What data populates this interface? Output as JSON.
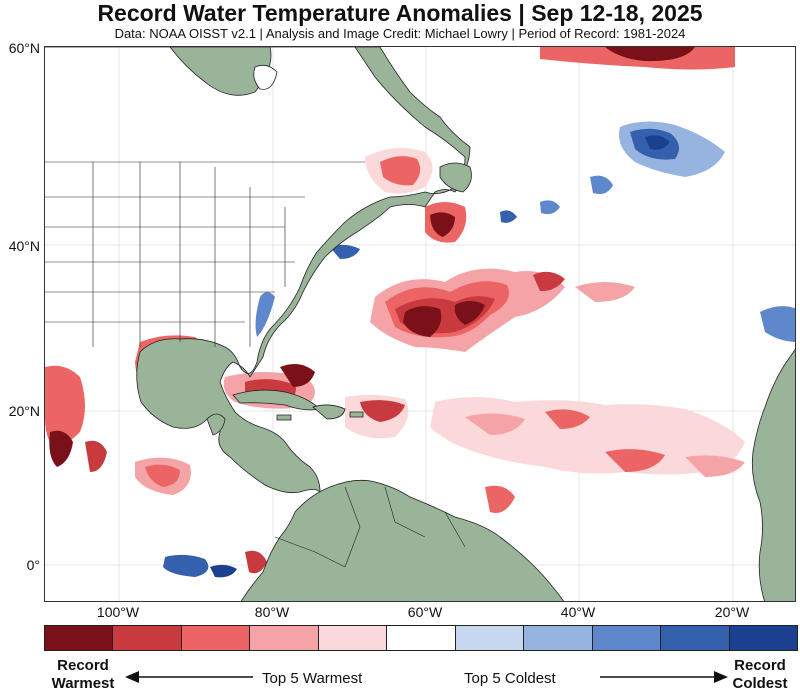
{
  "title": "Record Water Temperature Anomalies | Sep 12-18, 2025",
  "subtitle": "Data: NOAA OISST v2.1 | Analysis and Image Credit: Michael Lowry | Period of Record: 1981-2024",
  "map": {
    "lat_labels": [
      "60°N",
      "40°N",
      "20°N",
      "0°"
    ],
    "lon_labels": [
      "100°W",
      "80°W",
      "60°W",
      "40°W",
      "20°W"
    ],
    "colors": {
      "land": "#9ab49a",
      "ocean": "#ffffff",
      "border": "#222222"
    }
  },
  "legend": {
    "colors": [
      "#7a1018",
      "#c93a3e",
      "#ec6565",
      "#f4a3a6",
      "#fbd9db",
      "#ffffff",
      "#c6d7ef",
      "#97b3e0",
      "#5f88cc",
      "#3460ad",
      "#1b408f"
    ],
    "left_label_line1": "Record",
    "left_label_line2": "Warmest",
    "warm_text": "Top 5 Warmest",
    "cold_text": "Top 5 Coldest",
    "right_label_line1": "Record",
    "right_label_line2": "Coldest"
  }
}
